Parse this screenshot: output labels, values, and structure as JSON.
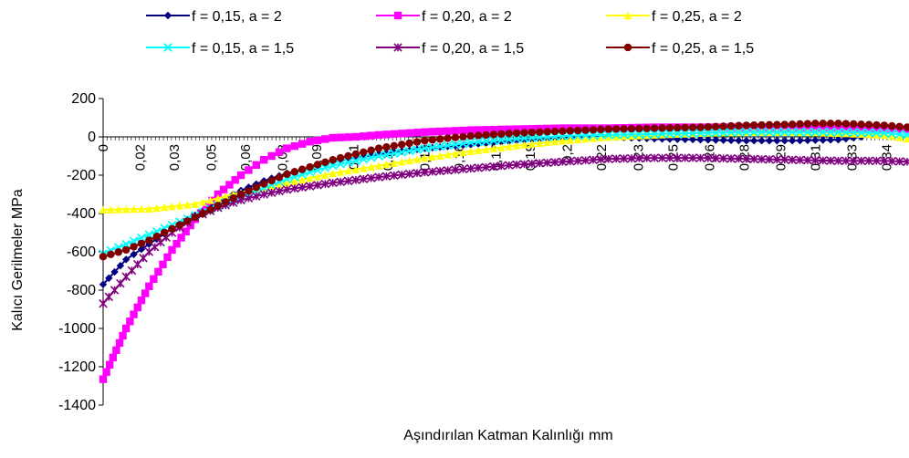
{
  "chart_data": {
    "type": "line",
    "title": "",
    "xlabel": "Aşındırılan Katman Kalınlığı mm",
    "ylabel": "Kalıcı Gerilmeler MPa",
    "ylim": [
      -1400,
      200
    ],
    "yticks": [
      200,
      0,
      -200,
      -400,
      -600,
      -800,
      -1000,
      -1200,
      -1400
    ],
    "ytick_labels": [
      "200",
      "0",
      "-200",
      "-400",
      "-600",
      "-800",
      "-1000",
      "-1200",
      "-1400"
    ],
    "xlim": [
      0,
      0.35
    ],
    "xtick_labels": [
      "0",
      "0,02",
      "0,03",
      "0,05",
      "0,06",
      "0,08",
      "0,09",
      "0,11",
      "0,12",
      "0,14",
      "0,16",
      "0,17",
      "0,19",
      "0,2",
      "0,22",
      "0,23",
      "0,25",
      "0,26",
      "0,28",
      "0,29",
      "0,31",
      "0,33",
      "0,34"
    ],
    "xtick_values": [
      0,
      0.016,
      0.031,
      0.047,
      0.062,
      0.078,
      0.093,
      0.109,
      0.124,
      0.14,
      0.155,
      0.171,
      0.186,
      0.202,
      0.217,
      0.233,
      0.248,
      0.264,
      0.279,
      0.295,
      0.31,
      0.326,
      0.341
    ],
    "grid": false,
    "legend_position": "top",
    "series": [
      {
        "name": "f = 0,15, a = 2",
        "color": "#000080",
        "marker": "diamond",
        "x": [
          0,
          0.01,
          0.02,
          0.03,
          0.04,
          0.05,
          0.06,
          0.07,
          0.08,
          0.1,
          0.12,
          0.14,
          0.16,
          0.18,
          0.2,
          0.22,
          0.24,
          0.26,
          0.28,
          0.3,
          0.32,
          0.33
        ],
        "y": [
          -770,
          -640,
          -560,
          -480,
          -410,
          -340,
          -280,
          -230,
          -190,
          -130,
          -90,
          -60,
          -40,
          -20,
          -5,
          0,
          -10,
          -15,
          -20,
          -20,
          -15,
          0
        ]
      },
      {
        "name": "f = 0,20, a = 2",
        "color": "#FF00FF",
        "marker": "square",
        "x": [
          0,
          0.01,
          0.02,
          0.03,
          0.04,
          0.05,
          0.06,
          0.07,
          0.08,
          0.09,
          0.1,
          0.11,
          0.12,
          0.14,
          0.16,
          0.18,
          0.2,
          0.22,
          0.24,
          0.26,
          0.28,
          0.3,
          0.32,
          0.34,
          0.35
        ],
        "y": [
          -1265,
          -1000,
          -780,
          -590,
          -430,
          -300,
          -200,
          -120,
          -60,
          -25,
          -5,
          0,
          10,
          25,
          35,
          40,
          45,
          45,
          50,
          50,
          50,
          50,
          50,
          45,
          40
        ]
      },
      {
        "name": "f = 0,25, a = 2",
        "color": "#FFFF00",
        "marker": "triangle",
        "x": [
          0,
          0.02,
          0.04,
          0.05,
          0.06,
          0.08,
          0.1,
          0.12,
          0.14,
          0.16,
          0.18,
          0.2,
          0.22,
          0.24,
          0.26,
          0.28,
          0.3,
          0.32,
          0.34,
          0.35
        ],
        "y": [
          -380,
          -375,
          -350,
          -320,
          -290,
          -240,
          -190,
          -150,
          -110,
          -75,
          -45,
          -20,
          0,
          10,
          20,
          25,
          25,
          20,
          10,
          -10
        ]
      },
      {
        "name": "f = 0,15, a = 1,5",
        "color": "#00FFFF",
        "marker": "x",
        "x": [
          0,
          0.01,
          0.02,
          0.03,
          0.04,
          0.05,
          0.06,
          0.07,
          0.08,
          0.1,
          0.12,
          0.14,
          0.16,
          0.18,
          0.2,
          0.22,
          0.24,
          0.26,
          0.28,
          0.3,
          0.32,
          0.34,
          0.35
        ],
        "y": [
          -610,
          -560,
          -510,
          -460,
          -410,
          -360,
          -310,
          -265,
          -220,
          -150,
          -100,
          -60,
          -30,
          -10,
          5,
          10,
          15,
          20,
          25,
          25,
          25,
          20,
          10
        ]
      },
      {
        "name": "f = 0,20, a = 1,5",
        "color": "#800080",
        "marker": "star",
        "x": [
          0,
          0.01,
          0.02,
          0.03,
          0.04,
          0.05,
          0.06,
          0.07,
          0.08,
          0.1,
          0.12,
          0.14,
          0.16,
          0.18,
          0.2,
          0.22,
          0.24,
          0.26,
          0.28,
          0.3,
          0.32,
          0.34,
          0.35
        ],
        "y": [
          -870,
          -730,
          -600,
          -500,
          -420,
          -370,
          -330,
          -300,
          -275,
          -240,
          -210,
          -185,
          -165,
          -145,
          -130,
          -115,
          -110,
          -110,
          -115,
          -120,
          -125,
          -125,
          -130
        ]
      },
      {
        "name": "f = 0,25, a = 1,5",
        "color": "#800000",
        "marker": "circle",
        "x": [
          0,
          0.01,
          0.02,
          0.03,
          0.04,
          0.05,
          0.06,
          0.07,
          0.08,
          0.1,
          0.12,
          0.14,
          0.16,
          0.18,
          0.2,
          0.22,
          0.24,
          0.26,
          0.28,
          0.3,
          0.31,
          0.32,
          0.34,
          0.35
        ],
        "y": [
          -625,
          -590,
          -540,
          -480,
          -420,
          -360,
          -300,
          -245,
          -195,
          -120,
          -60,
          -20,
          5,
          20,
          30,
          40,
          45,
          50,
          60,
          65,
          70,
          70,
          60,
          50
        ]
      }
    ]
  }
}
